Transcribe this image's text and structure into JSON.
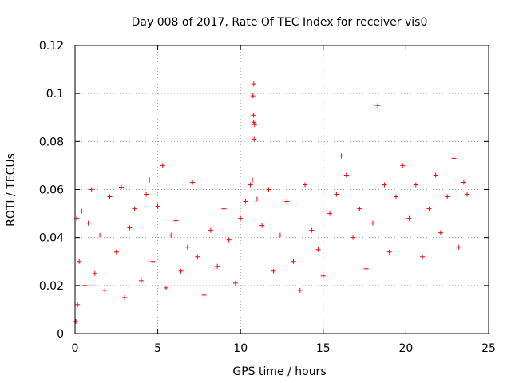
{
  "chart_data": {
    "type": "scatter",
    "title": "Day 008 of 2017, Rate Of TEC Index for receiver vis0",
    "xlabel": "GPS time / hours",
    "ylabel": "ROTI / TECUs",
    "xlim": [
      0,
      25
    ],
    "ylim": [
      0,
      0.12
    ],
    "xticks": [
      "0",
      "5",
      "10",
      "15",
      "20",
      "25"
    ],
    "yticks": [
      "0",
      "0.02",
      "0.04",
      "0.06",
      "0.08",
      "0.1",
      "0.12"
    ],
    "grid": true,
    "marker": "+",
    "color": "#ff0000",
    "series": [
      {
        "x": [
          0.05,
          0.1,
          0.15,
          0.25,
          0.4,
          0.6,
          0.8,
          1.0,
          1.2,
          1.5,
          1.8,
          2.1,
          2.5,
          2.8,
          3.0,
          3.3,
          3.6,
          4.0,
          4.3,
          4.5,
          4.7,
          5.0,
          5.3,
          5.5,
          5.8,
          6.1,
          6.4,
          6.8,
          7.1,
          7.4,
          7.8,
          8.2,
          8.6,
          9.0,
          9.3,
          9.7,
          10.0,
          10.3,
          10.6,
          10.8,
          11.0,
          11.3,
          11.7,
          12.0,
          12.4,
          12.8,
          13.2,
          13.6,
          13.9,
          14.3,
          14.7,
          15.0,
          15.4,
          15.8,
          16.1,
          16.4,
          16.8,
          17.2,
          17.6,
          18.0,
          18.3,
          18.7,
          19.0,
          19.4,
          19.8,
          20.2,
          20.6,
          21.0,
          21.4,
          21.8,
          22.1,
          22.5,
          22.9,
          23.2,
          23.5,
          23.7
        ],
        "y": [
          0.005,
          0.048,
          0.012,
          0.03,
          0.051,
          0.02,
          0.046,
          0.06,
          0.025,
          0.041,
          0.018,
          0.057,
          0.034,
          0.061,
          0.015,
          0.044,
          0.052,
          0.022,
          0.058,
          0.064,
          0.03,
          0.053,
          0.07,
          0.019,
          0.041,
          0.047,
          0.026,
          0.036,
          0.063,
          0.032,
          0.016,
          0.043,
          0.028,
          0.052,
          0.039,
          0.021,
          0.048,
          0.055,
          0.062,
          0.104,
          0.056,
          0.045,
          0.06,
          0.026,
          0.041,
          0.055,
          0.03,
          0.018,
          0.062,
          0.043,
          0.035,
          0.024,
          0.05,
          0.058,
          0.074,
          0.066,
          0.04,
          0.052,
          0.027,
          0.046,
          0.095,
          0.062,
          0.034,
          0.057,
          0.07,
          0.048,
          0.062,
          0.032,
          0.052,
          0.066,
          0.042,
          0.057,
          0.073,
          0.036,
          0.063,
          0.058
        ]
      },
      {
        "x": [
          10.75,
          10.78,
          10.8,
          10.82,
          10.85,
          10.72
        ],
        "y": [
          0.099,
          0.091,
          0.088,
          0.081,
          0.087,
          0.064
        ]
      }
    ]
  }
}
